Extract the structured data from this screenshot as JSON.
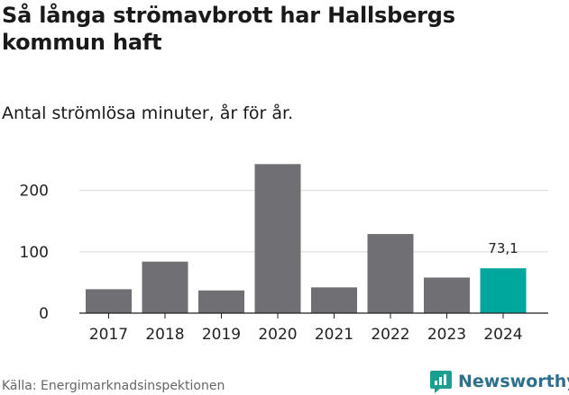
{
  "chart_data": {
    "type": "bar",
    "title": "Så långa strömavbrott har Hallsbergs kommun haft",
    "subtitle": "Antal strömlösa minuter, år för år.",
    "categories": [
      "2017",
      "2018",
      "2019",
      "2020",
      "2021",
      "2022",
      "2023",
      "2024"
    ],
    "values": [
      39,
      84,
      37,
      243,
      42,
      129,
      58,
      73.1
    ],
    "value_labels": [
      "",
      "",
      "",
      "",
      "",
      "",
      "",
      "73,1"
    ],
    "highlight_index": 7,
    "yticks": [
      0,
      100,
      200
    ],
    "ylim": [
      0,
      245
    ],
    "xlabel": "",
    "ylabel": "",
    "grid": true
  },
  "colors": {
    "bar": "#706f73",
    "highlight": "#00a79d",
    "grid": "#d9d9d9",
    "axis": "#222222"
  },
  "footer": {
    "source": "Källa: Energimarknadsinspektionen",
    "brand": "Newsworthy",
    "brand_icon": "newsworthy-logo-icon"
  }
}
